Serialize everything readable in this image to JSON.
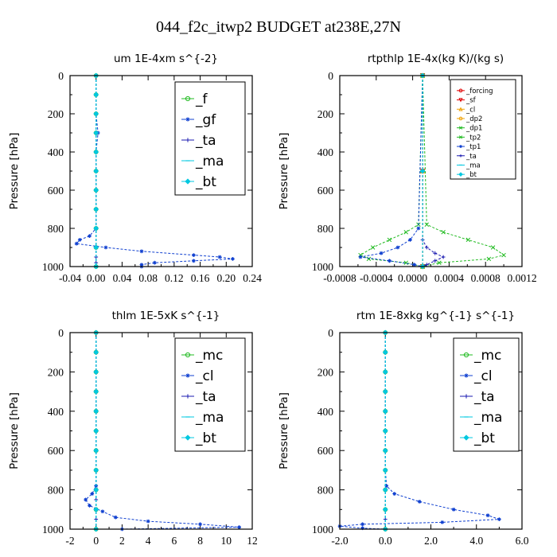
{
  "title": "044_f2c_itwp2  BUDGET at238E,27N",
  "colors": {
    "green": "#22bb22",
    "blue": "#1040d0",
    "navy": "#1a1ab0",
    "cyan": "#00c8e0",
    "red": "#e00000",
    "orange": "#f0a000",
    "black": "#000000"
  },
  "chart_data": [
    {
      "type": "line",
      "title": "um   1E-4xm  s^{-2}",
      "ylabel": "Pressure [hPa]",
      "xlim": [
        -0.04,
        0.24
      ],
      "ylim": [
        1000,
        0
      ],
      "xticks": [
        "-0.04",
        "0.00",
        "0.04",
        "0.08",
        "0.12",
        "0.16",
        "0.20",
        "0.24"
      ],
      "yticks": [
        "0",
        "200",
        "400",
        "600",
        "800",
        "1000"
      ],
      "legend_position": "top-right",
      "series": [
        {
          "name": "_f",
          "color": "green",
          "marker": "o",
          "p": [
            0,
            100,
            200,
            300,
            400,
            500,
            600,
            700,
            800,
            900,
            1000
          ],
          "x": [
            0,
            0,
            0,
            0,
            0,
            0,
            0,
            0,
            0,
            0,
            0
          ]
        },
        {
          "name": "_gf",
          "color": "blue",
          "marker": "*",
          "p": [
            0,
            100,
            200,
            300,
            400,
            500,
            600,
            700,
            800,
            840,
            860,
            880,
            900,
            920,
            940,
            950,
            960,
            970,
            980,
            990,
            1000
          ],
          "x": [
            0,
            0,
            0,
            0.003,
            0,
            0,
            0,
            0,
            0,
            -0.01,
            -0.025,
            -0.03,
            0.015,
            0.07,
            0.15,
            0.19,
            0.21,
            0.15,
            0.09,
            0.07,
            0.07
          ]
        },
        {
          "name": "_ta",
          "color": "navy",
          "marker": "+",
          "p": [
            0,
            500,
            900,
            950,
            980,
            1000
          ],
          "x": [
            0,
            0,
            0,
            0,
            0,
            0
          ]
        },
        {
          "name": "_ma",
          "color": "cyan",
          "marker": "-",
          "p": [
            0,
            500,
            1000
          ],
          "x": [
            0,
            0,
            0
          ]
        },
        {
          "name": "_bt",
          "color": "cyan",
          "marker": "D",
          "p": [
            0,
            100,
            200,
            300,
            400,
            500,
            600,
            700,
            800,
            900,
            1000
          ],
          "x": [
            0,
            0,
            0,
            0,
            0,
            0,
            0,
            0,
            0,
            0,
            0
          ]
        }
      ]
    },
    {
      "type": "line",
      "title": "rtpthlp   1E-4x(kg K)/(kg s)",
      "ylabel": "Pressure [hPa]",
      "xlim": [
        -0.001,
        0.0012
      ],
      "ylim": [
        1000,
        0
      ],
      "xticks": [
        "-0.0008",
        "-0.0004",
        "0.0000",
        "0.0004",
        "0.0008",
        "0.0012"
      ],
      "yticks": [
        "0",
        "200",
        "400",
        "600",
        "800",
        "1000"
      ],
      "legend_position": "top-right",
      "series": [
        {
          "name": "_forcing",
          "color": "red",
          "marker": "o",
          "p": [
            0,
            500,
            1000
          ],
          "x": [
            0,
            0,
            0
          ]
        },
        {
          "name": "_sf",
          "color": "red",
          "marker": "v",
          "p": [
            0,
            500,
            1000
          ],
          "x": [
            0,
            0,
            0
          ]
        },
        {
          "name": "_cl",
          "color": "orange",
          "marker": "^",
          "p": [
            0,
            500,
            1000
          ],
          "x": [
            0,
            0,
            0
          ]
        },
        {
          "name": "_dp2",
          "color": "orange",
          "marker": "o",
          "p": [
            0,
            500,
            1000
          ],
          "x": [
            0,
            0,
            0
          ]
        },
        {
          "name": "_dp1",
          "color": "green",
          "marker": "x",
          "p": [
            0,
            780,
            820,
            860,
            900,
            940,
            960,
            980,
            1000
          ],
          "x": [
            0,
            5e-05,
            0.00025,
            0.00055,
            0.00085,
            0.00098,
            0.0008,
            0.0002,
            0
          ]
        },
        {
          "name": "_tp2",
          "color": "green",
          "marker": "x",
          "p": [
            0,
            780,
            820,
            860,
            900,
            940,
            960,
            980,
            1000
          ],
          "x": [
            0,
            -5e-05,
            -0.0002,
            -0.0004,
            -0.0006,
            -0.00075,
            -0.00065,
            -0.0002,
            0
          ]
        },
        {
          "name": "_tp1",
          "color": "blue",
          "marker": "*",
          "p": [
            0,
            800,
            860,
            900,
            930,
            950,
            970,
            990,
            1000
          ],
          "x": [
            0,
            -5e-05,
            -0.00015,
            -0.0003,
            -0.0005,
            -0.00075,
            -0.0004,
            -0.0001,
            0
          ]
        },
        {
          "name": "_ta",
          "color": "navy",
          "marker": "+",
          "p": [
            0,
            860,
            900,
            930,
            950,
            970,
            990,
            1000
          ],
          "x": [
            0,
            0,
            5e-05,
            0.00015,
            0.00025,
            0.00015,
            5e-05,
            0
          ]
        },
        {
          "name": "_ma",
          "color": "cyan",
          "marker": "-",
          "p": [
            0,
            500,
            1000
          ],
          "x": [
            0,
            0,
            0
          ]
        },
        {
          "name": "_bt",
          "color": "cyan",
          "marker": "D",
          "p": [
            0,
            500,
            1000
          ],
          "x": [
            0,
            0,
            0
          ]
        }
      ]
    },
    {
      "type": "line",
      "title": "thlm   1E-5xK  s^{-1}",
      "ylabel": "Pressure [hPa]",
      "xlim": [
        -2,
        12
      ],
      "ylim": [
        1000,
        0
      ],
      "xticks": [
        "-2",
        "0",
        "2",
        "4",
        "6",
        "8",
        "10",
        "12"
      ],
      "yticks": [
        "0",
        "200",
        "400",
        "600",
        "800",
        "1000"
      ],
      "legend_position": "top-right",
      "series": [
        {
          "name": "_mc",
          "color": "green",
          "marker": "o",
          "p": [
            0,
            100,
            200,
            300,
            400,
            500,
            600,
            700,
            800,
            900,
            1000
          ],
          "x": [
            0,
            0,
            0,
            0,
            0,
            0,
            0,
            0,
            0,
            0,
            0
          ]
        },
        {
          "name": "_cl",
          "color": "blue",
          "marker": "*",
          "p": [
            0,
            100,
            200,
            300,
            400,
            500,
            600,
            700,
            780,
            820,
            850,
            880,
            910,
            940,
            960,
            975,
            990,
            1000
          ],
          "x": [
            0,
            0,
            0,
            0,
            0,
            0,
            0,
            0,
            0,
            -0.3,
            -0.8,
            -0.5,
            0.5,
            1.5,
            4,
            8,
            11,
            2
          ]
        },
        {
          "name": "_ta",
          "color": "navy",
          "marker": "+",
          "p": [
            0,
            500,
            850,
            950,
            1000
          ],
          "x": [
            0,
            0,
            0,
            0,
            0
          ]
        },
        {
          "name": "_ma",
          "color": "cyan",
          "marker": "-",
          "p": [
            0,
            500,
            1000
          ],
          "x": [
            0,
            0,
            0
          ]
        },
        {
          "name": "_bt",
          "color": "cyan",
          "marker": "D",
          "p": [
            0,
            100,
            200,
            300,
            400,
            500,
            600,
            700,
            800,
            900,
            1000
          ],
          "x": [
            0,
            0,
            0,
            0,
            0,
            0,
            0,
            0,
            0,
            0,
            0
          ]
        }
      ]
    },
    {
      "type": "line",
      "title": "rtm   1E-8xkg  kg^{-1} s^{-1}",
      "ylabel": "Pressure [hPa]",
      "xlim": [
        -2.0,
        6.0
      ],
      "ylim": [
        1000,
        0
      ],
      "xticks": [
        "-2.0",
        "0.0",
        "2.0",
        "4.0",
        "6.0"
      ],
      "yticks": [
        "0",
        "200",
        "400",
        "600",
        "800",
        "1000"
      ],
      "legend_position": "top-right",
      "series": [
        {
          "name": "_mc",
          "color": "green",
          "marker": "o",
          "p": [
            0,
            100,
            200,
            300,
            400,
            500,
            600,
            700,
            800,
            900,
            1000
          ],
          "x": [
            0,
            0,
            0,
            0,
            0,
            0,
            0,
            0,
            0,
            0,
            0
          ]
        },
        {
          "name": "_cl",
          "color": "blue",
          "marker": "*",
          "p": [
            0,
            100,
            200,
            300,
            400,
            500,
            600,
            700,
            780,
            820,
            860,
            900,
            930,
            950,
            965,
            975,
            985,
            995,
            1000
          ],
          "x": [
            0,
            0,
            0,
            0,
            0,
            0,
            0,
            0,
            0.05,
            0.4,
            1.5,
            3.0,
            4.5,
            5.0,
            2.5,
            -1.0,
            -2.0,
            -1.0,
            0
          ]
        },
        {
          "name": "_ta",
          "color": "navy",
          "marker": "+",
          "p": [
            0,
            500,
            950,
            1000
          ],
          "x": [
            0,
            0,
            0,
            0
          ]
        },
        {
          "name": "_ma",
          "color": "cyan",
          "marker": "-",
          "p": [
            0,
            500,
            1000
          ],
          "x": [
            0,
            0,
            0
          ]
        },
        {
          "name": "_bt",
          "color": "cyan",
          "marker": "D",
          "p": [
            0,
            100,
            200,
            300,
            400,
            500,
            600,
            700,
            800,
            900,
            1000
          ],
          "x": [
            0,
            0,
            0,
            0,
            0,
            0,
            0,
            0,
            0,
            0,
            0
          ]
        }
      ]
    }
  ]
}
